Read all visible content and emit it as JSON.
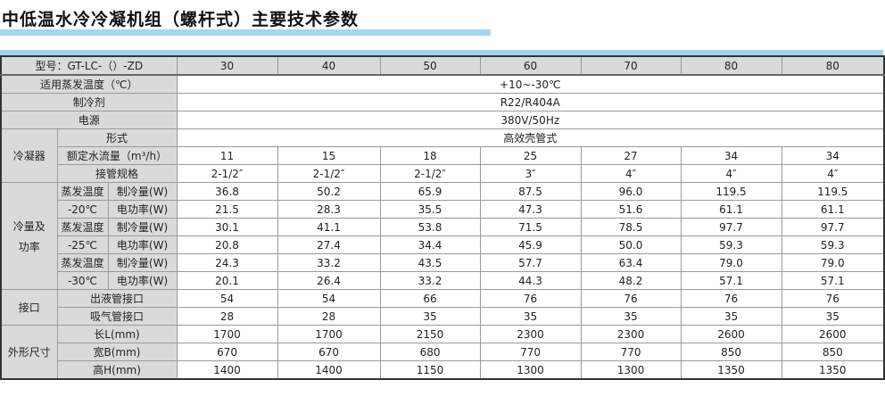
{
  "title": "中低温水冷冷凝机组（螺杆式）主要技术参数",
  "table": {
    "model_label": "型号：GT-LC-（）-ZD",
    "models": [
      "30",
      "40",
      "50",
      "60",
      "70",
      "80",
      "80"
    ],
    "evap_temp": {
      "label": "适用蒸发温度（℃）",
      "value": "+10~-30℃"
    },
    "refrigerant": {
      "label": "制冷剂",
      "value": "R22/R404A"
    },
    "power_supply": {
      "label": "电源",
      "value": "380V/50Hz"
    },
    "condenser": {
      "group": "冷凝器",
      "type": {
        "label": "形式",
        "value": "高效壳管式"
      },
      "water_flow": {
        "label": "额定水流量（m³/h）",
        "values": [
          "11",
          "15",
          "18",
          "25",
          "27",
          "34",
          "34"
        ]
      },
      "pipe": {
        "label": "接管规格",
        "values": [
          "2-1/2″",
          "2-1/2″",
          "2-1/2″",
          "3″",
          "4″",
          "4″",
          "4″"
        ]
      }
    },
    "capacity": {
      "group_line1": "冷量及",
      "group_line2": "功率",
      "conditions": [
        {
          "evap_label": "蒸发温度",
          "temp": "-20℃",
          "cooling_label": "制冷量(W)",
          "cooling": [
            "36.8",
            "50.2",
            "65.9",
            "87.5",
            "96.0",
            "119.5",
            "119.5"
          ],
          "power_label": "电功率(W)",
          "power": [
            "21.5",
            "28.3",
            "35.5",
            "47.3",
            "51.6",
            "61.1",
            "61.1"
          ]
        },
        {
          "evap_label": "蒸发温度",
          "temp": "-25℃",
          "cooling_label": "制冷量(W)",
          "cooling": [
            "30.1",
            "41.1",
            "53.8",
            "71.5",
            "78.5",
            "97.7",
            "97.7"
          ],
          "power_label": "电功率(W)",
          "power": [
            "20.8",
            "27.4",
            "34.4",
            "45.9",
            "50.0",
            "59.3",
            "59.3"
          ]
        },
        {
          "evap_label": "蒸发温度",
          "temp": "-30℃",
          "cooling_label": "制冷量(W)",
          "cooling": [
            "24.3",
            "33.2",
            "43.5",
            "57.7",
            "63.4",
            "79.0",
            "79.0"
          ],
          "power_label": "电功率(W)",
          "power": [
            "20.1",
            "26.4",
            "33.2",
            "44.3",
            "48.2",
            "57.1",
            "57.1"
          ]
        }
      ]
    },
    "connections": {
      "group": "接口",
      "liquid": {
        "label": "出液管接口",
        "values": [
          "54",
          "54",
          "66",
          "76",
          "76",
          "76",
          "76"
        ]
      },
      "suction": {
        "label": "吸气管接口",
        "values": [
          "28",
          "28",
          "35",
          "35",
          "35",
          "35",
          "35"
        ]
      }
    },
    "dimensions": {
      "group": "外形尺寸",
      "length": {
        "label": "长L(mm)",
        "values": [
          "1700",
          "1700",
          "2150",
          "2300",
          "2300",
          "2600",
          "2600"
        ]
      },
      "width": {
        "label": "宽B(mm)",
        "values": [
          "670",
          "670",
          "680",
          "770",
          "770",
          "850",
          "850"
        ]
      },
      "height": {
        "label": "高H(mm)",
        "values": [
          "1400",
          "1400",
          "1150",
          "1300",
          "1300",
          "1350",
          "1350"
        ]
      }
    }
  }
}
